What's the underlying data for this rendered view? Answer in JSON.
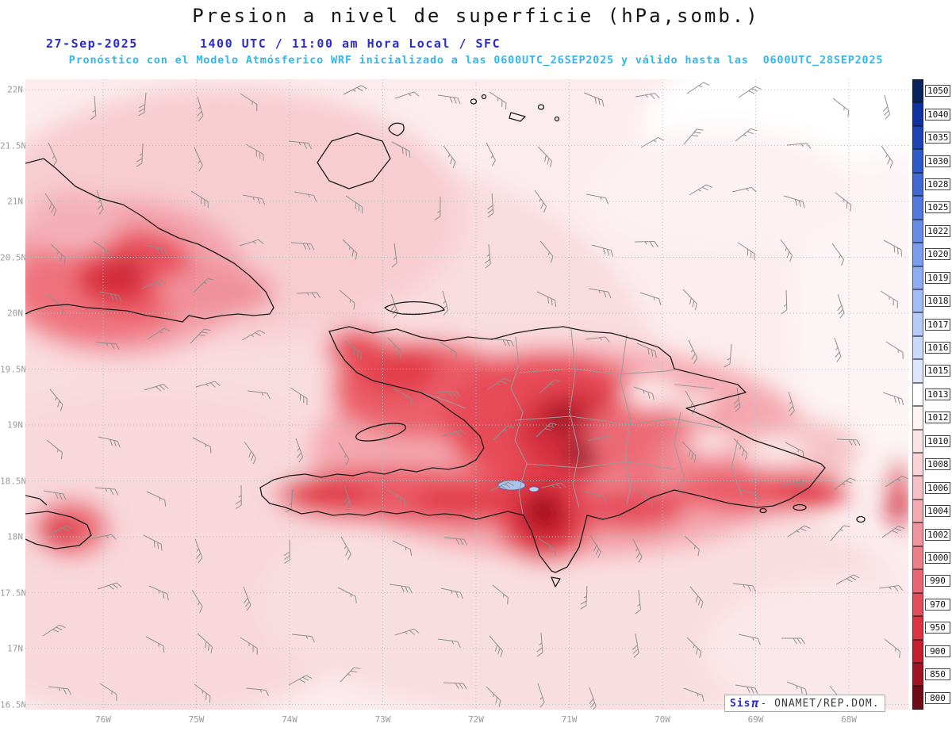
{
  "header": {
    "title": "Presion a nivel de superficie (hPa,somb.)",
    "date": "27-Sep-2025",
    "time": "1400 UTC / 11:00 am Hora Local / SFC",
    "subtitle": "Pronóstico con el Modelo Atmósferico WRF inicializado a las 0600UTC_26SEP2025 y válido hasta las  0600UTC_28SEP2025"
  },
  "axes": {
    "lat_labels": [
      "22N",
      "21.5N",
      "21N",
      "20.5N",
      "20N",
      "19.5N",
      "19N",
      "18.5N",
      "18N",
      "17.5N",
      "17N",
      "16.5N"
    ],
    "lon_labels": [
      "76W",
      "75W",
      "74W",
      "73W",
      "72W",
      "71W",
      "70W",
      "69W",
      "68W"
    ]
  },
  "legend": {
    "stops": [
      {
        "value": "1050",
        "color": "#08225e"
      },
      {
        "value": "1040",
        "color": "#10329e"
      },
      {
        "value": "1035",
        "color": "#1e44b4"
      },
      {
        "value": "1030",
        "color": "#2f58c8"
      },
      {
        "value": "1028",
        "color": "#4169d4"
      },
      {
        "value": "1025",
        "color": "#527ade"
      },
      {
        "value": "1022",
        "color": "#668ce6"
      },
      {
        "value": "1020",
        "color": "#7a9dee"
      },
      {
        "value": "1019",
        "color": "#8eadf2"
      },
      {
        "value": "1018",
        "color": "#a2bcf6"
      },
      {
        "value": "1017",
        "color": "#b6cbf8"
      },
      {
        "value": "1016",
        "color": "#c9d9fa"
      },
      {
        "value": "1015",
        "color": "#dde7fc"
      },
      {
        "value": "1013",
        "color": "#ffffff"
      },
      {
        "value": "1012",
        "color": "#fdf3f4"
      },
      {
        "value": "1010",
        "color": "#fbe4e6"
      },
      {
        "value": "1008",
        "color": "#f9d3d6"
      },
      {
        "value": "1006",
        "color": "#f6bfc4"
      },
      {
        "value": "1004",
        "color": "#f3abb1"
      },
      {
        "value": "1002",
        "color": "#f0959d"
      },
      {
        "value": "1000",
        "color": "#ec7e88"
      },
      {
        "value": "990",
        "color": "#e76672"
      },
      {
        "value": "970",
        "color": "#e14d5a"
      },
      {
        "value": "950",
        "color": "#d93442"
      },
      {
        "value": "900",
        "color": "#c21f2f"
      },
      {
        "value": "850",
        "color": "#a01423"
      },
      {
        "value": "800",
        "color": "#700c18"
      }
    ]
  },
  "attribution": {
    "sis": "Sis",
    "pi": "π",
    "rest": "- ONAMET/REP.DOM."
  },
  "colors": {
    "date_blue": "#2b2bd0",
    "subtitle_cyan": "#35b6ea",
    "axis_gray": "#9a9a9a",
    "ocean_pink": "#fcecee"
  }
}
